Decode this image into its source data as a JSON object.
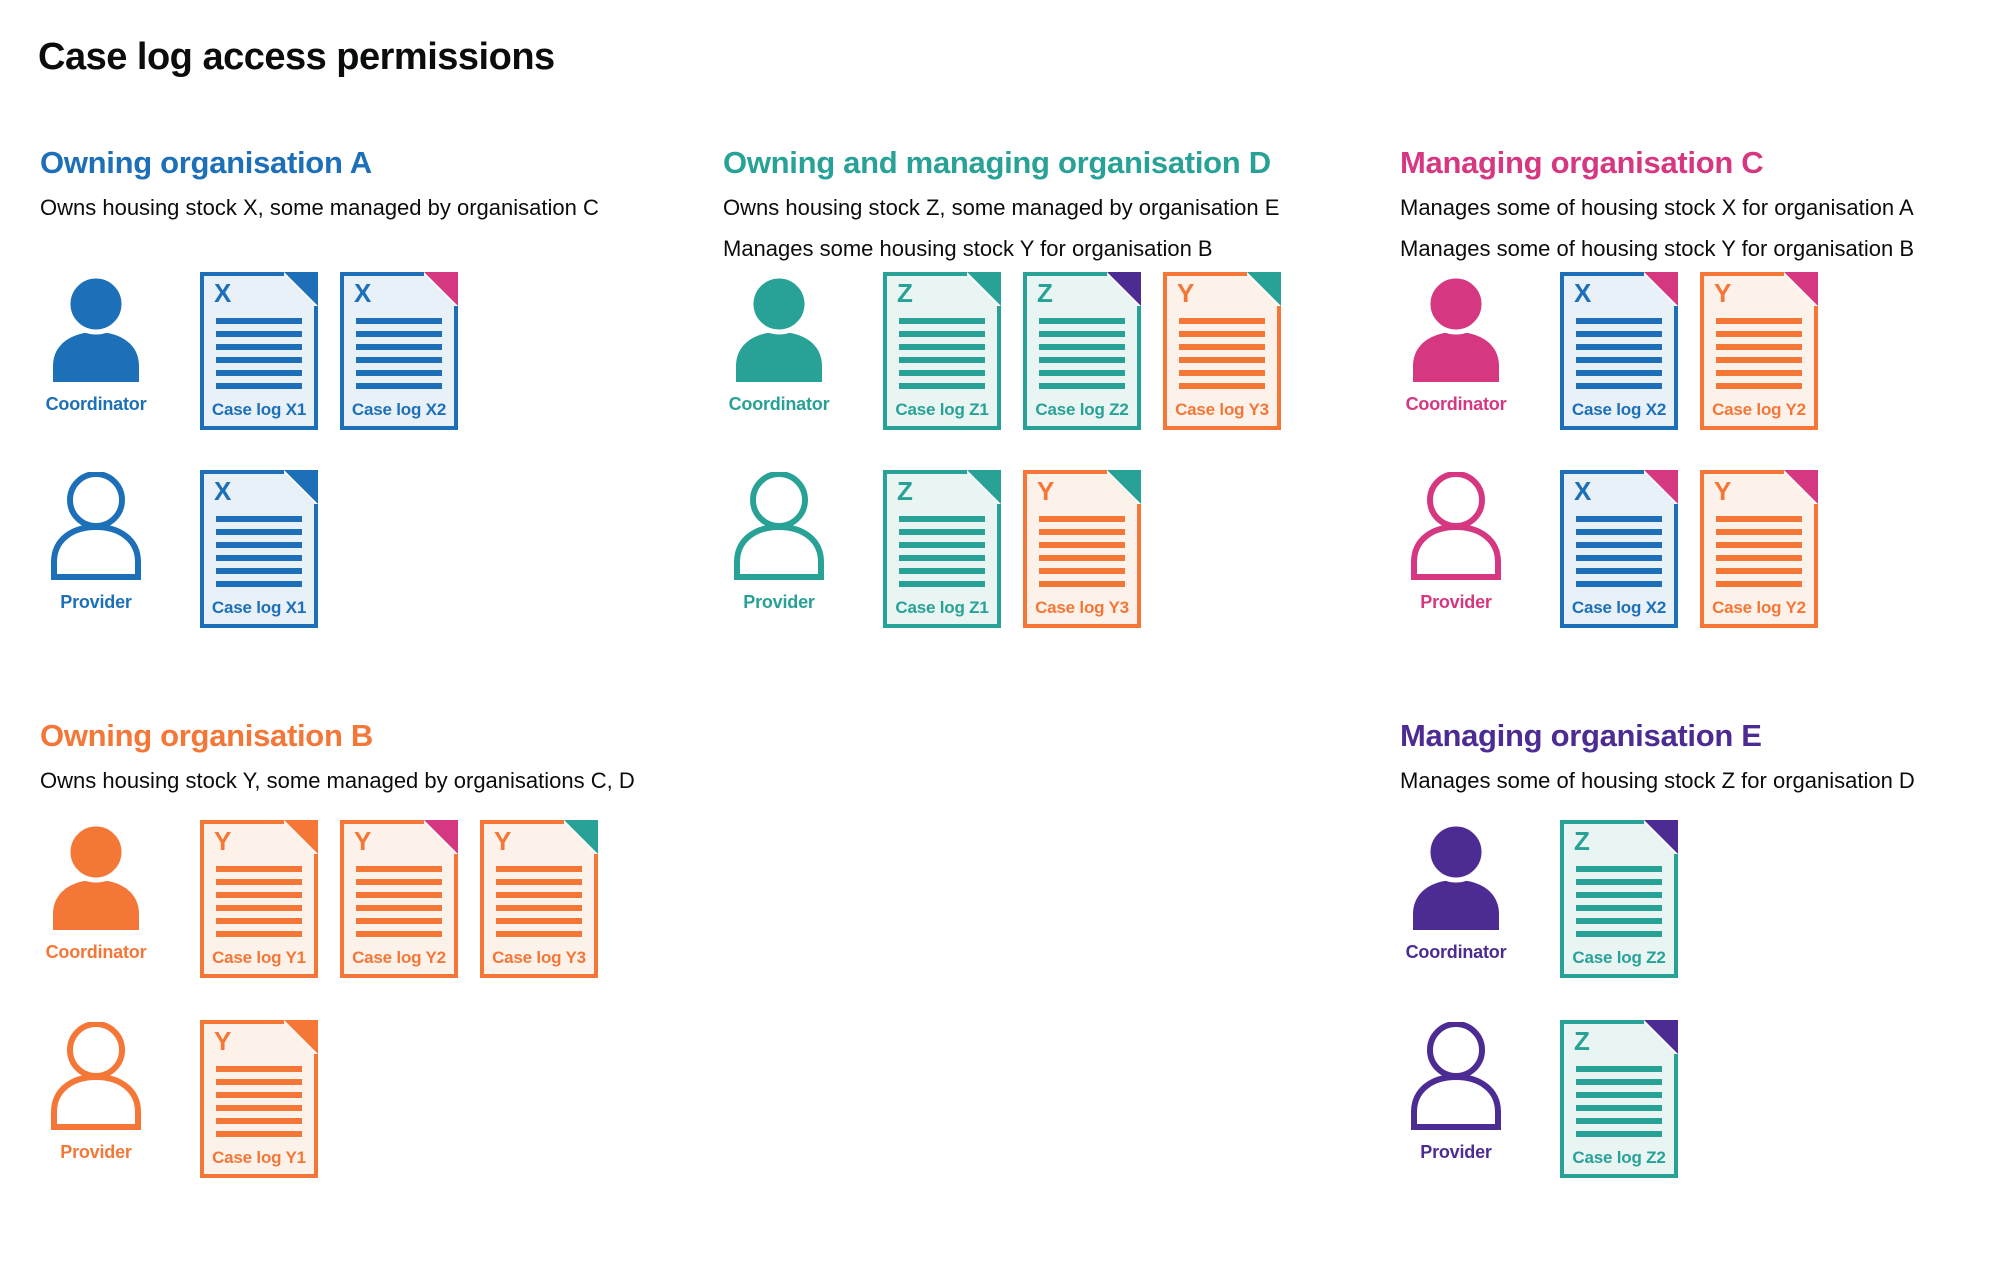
{
  "title": "Case log access permissions",
  "roles": {
    "coordinator": "Coordinator",
    "provider": "Provider"
  },
  "colors": {
    "blue": "#1d70b8",
    "teal": "#28a197",
    "orange": "#f47738",
    "pink": "#d53880",
    "purple": "#4c2c92",
    "text": "#0b0c0c",
    "background": "#ffffff",
    "blue_tint": "#e9f1f8",
    "teal_tint": "#e9f5f3",
    "orange_tint": "#fdf2ea"
  },
  "letter_colors": {
    "X": "blue",
    "Y": "orange",
    "Z": "teal"
  },
  "sections": [
    {
      "id": "org-a",
      "slot": "top-left",
      "heading": "Owning organisation A",
      "color": "blue",
      "description": [
        "Owns housing stock X, some managed by organisation C"
      ],
      "rows": [
        {
          "role": "coordinator",
          "docs": [
            {
              "label": "Case log X1",
              "letter": "X",
              "fold": "blue"
            },
            {
              "label": "Case log X2",
              "letter": "X",
              "fold": "pink"
            }
          ]
        },
        {
          "role": "provider",
          "docs": [
            {
              "label": "Case log X1",
              "letter": "X",
              "fold": "blue"
            }
          ]
        }
      ]
    },
    {
      "id": "org-d",
      "slot": "top-middle",
      "heading": "Owning and managing organisation D",
      "color": "teal",
      "description": [
        "Owns housing stock Z, some managed by organisation E",
        "Manages some housing stock Y for organisation B"
      ],
      "rows": [
        {
          "role": "coordinator",
          "docs": [
            {
              "label": "Case log Z1",
              "letter": "Z",
              "fold": "teal"
            },
            {
              "label": "Case log Z2",
              "letter": "Z",
              "fold": "purple"
            },
            {
              "label": "Case log Y3",
              "letter": "Y",
              "fold": "teal"
            }
          ]
        },
        {
          "role": "provider",
          "docs": [
            {
              "label": "Case log Z1",
              "letter": "Z",
              "fold": "teal"
            },
            {
              "label": "Case log Y3",
              "letter": "Y",
              "fold": "teal"
            }
          ]
        }
      ]
    },
    {
      "id": "org-c",
      "slot": "top-right",
      "heading": "Managing organisation C",
      "color": "pink",
      "description": [
        "Manages some of housing stock X for organisation A",
        "Manages some of housing stock Y for organisation B"
      ],
      "rows": [
        {
          "role": "coordinator",
          "docs": [
            {
              "label": "Case log X2",
              "letter": "X",
              "fold": "pink"
            },
            {
              "label": "Case log Y2",
              "letter": "Y",
              "fold": "pink"
            }
          ]
        },
        {
          "role": "provider",
          "docs": [
            {
              "label": "Case log X2",
              "letter": "X",
              "fold": "pink"
            },
            {
              "label": "Case log Y2",
              "letter": "Y",
              "fold": "pink"
            }
          ]
        }
      ]
    },
    {
      "id": "org-b",
      "slot": "bottom-left",
      "heading": "Owning organisation B",
      "color": "orange",
      "description": [
        "Owns housing stock Y, some managed by organisations C, D"
      ],
      "rows": [
        {
          "role": "coordinator",
          "docs": [
            {
              "label": "Case log Y1",
              "letter": "Y",
              "fold": "orange"
            },
            {
              "label": "Case log Y2",
              "letter": "Y",
              "fold": "pink"
            },
            {
              "label": "Case log Y3",
              "letter": "Y",
              "fold": "teal"
            }
          ]
        },
        {
          "role": "provider",
          "docs": [
            {
              "label": "Case log Y1",
              "letter": "Y",
              "fold": "orange"
            }
          ]
        }
      ]
    },
    {
      "id": "org-e",
      "slot": "bottom-right",
      "heading": "Managing organisation E",
      "color": "purple",
      "description": [
        "Manages some of housing stock Z for organisation D"
      ],
      "rows": [
        {
          "role": "coordinator",
          "docs": [
            {
              "label": "Case log Z2",
              "letter": "Z",
              "fold": "purple"
            }
          ]
        },
        {
          "role": "provider",
          "docs": [
            {
              "label": "Case log Z2",
              "letter": "Z",
              "fold": "purple"
            }
          ]
        }
      ]
    }
  ]
}
